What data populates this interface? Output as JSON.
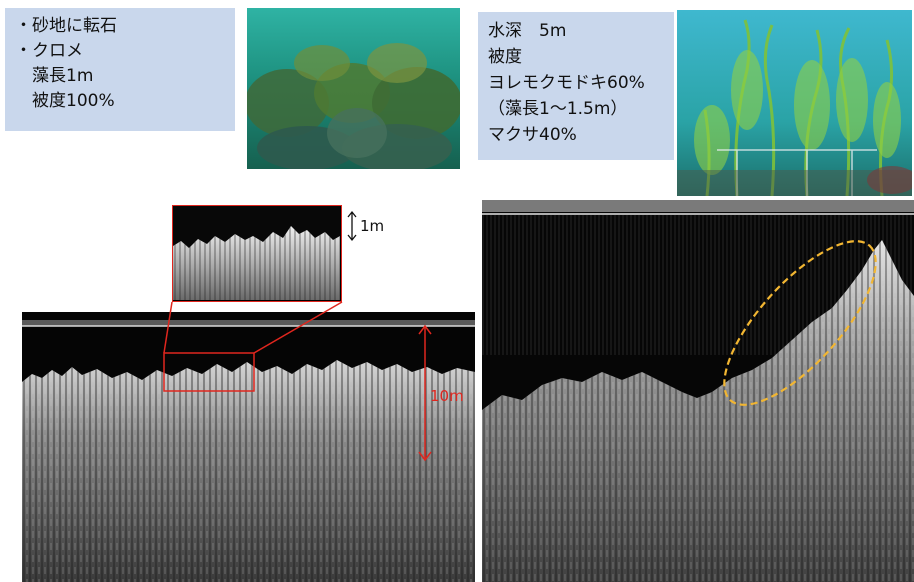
{
  "left_site": {
    "info_lines": [
      "・砂地に転石",
      "・クロメ",
      "　藻長1m",
      "　被度100%"
    ],
    "photo_icon": "underwater-kelp-photo",
    "sonar_icon": "echogram",
    "scale_1m": "1m",
    "scale_10m": "10m"
  },
  "right_site": {
    "info_lines": [
      "水深　5m",
      "被度",
      "ヨレモクモドキ60%",
      "（藻長1～1.5m）",
      "マクサ40%"
    ],
    "photo_icon": "underwater-seaweed-photo",
    "sonar_icon": "echogram"
  },
  "colors": {
    "info_box": "#c9d7ec",
    "highlight_red": "#e0261e",
    "ellipse_yellow": "#f2b632"
  }
}
